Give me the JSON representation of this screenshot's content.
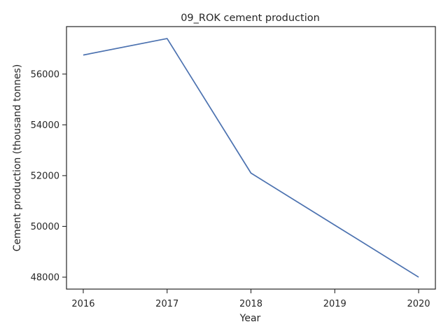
{
  "chart_data": {
    "type": "line",
    "title": "09_ROK cement production",
    "xlabel": "Year",
    "ylabel": "Cement production (thousand tonnes)",
    "x": [
      2016,
      2017,
      2018,
      2019,
      2020
    ],
    "x_tick_labels": [
      "2016",
      "2017",
      "2018",
      "2019",
      "2020"
    ],
    "y_ticks": [
      48000,
      50000,
      52000,
      54000,
      56000
    ],
    "y_tick_labels": [
      "48000",
      "50000",
      "52000",
      "54000",
      "56000"
    ],
    "xlim": [
      2015.8,
      2020.2
    ],
    "ylim": [
      47530,
      57870
    ],
    "grid": false,
    "series": [
      {
        "values": [
          56750,
          57400,
          52100,
          50050,
          48000
        ],
        "color": "#4c72b0"
      }
    ]
  }
}
